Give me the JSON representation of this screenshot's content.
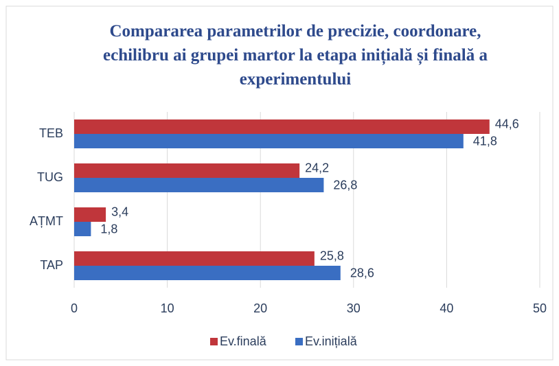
{
  "chart_data": {
    "type": "barh",
    "title": "Compararea parametrilor de precizie, coordonare, echilibru ai grupei martor la etapa inițială și finală a experimentului",
    "categories": [
      "TEB",
      "TUG",
      "AȚMT",
      "TAP"
    ],
    "series": [
      {
        "name": "Ev.finală",
        "color": "#c0363b",
        "values": [
          44.6,
          24.2,
          3.4,
          25.8
        ],
        "value_labels": [
          "44,6",
          "24,2",
          "3,4",
          "25,8"
        ]
      },
      {
        "name": "Ev.inițială",
        "color": "#3a6ec2",
        "values": [
          41.8,
          26.8,
          1.8,
          28.6
        ],
        "value_labels": [
          "41,8",
          "26,8",
          "1,8",
          "28,6"
        ]
      }
    ],
    "xlim": [
      0,
      50
    ],
    "xticks": [
      0,
      10,
      20,
      30,
      40,
      50
    ],
    "grid": true,
    "legend": "bottom"
  }
}
